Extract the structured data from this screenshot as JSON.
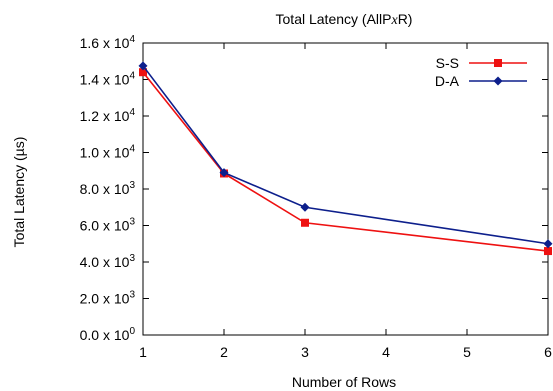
{
  "chart_data": {
    "type": "line",
    "title_prefix": "Total Latency (AllP",
    "title_italic": "x",
    "title_suffix": "R)",
    "xlabel": "Number of Rows",
    "ylabel": "Total Latency (µs)",
    "xlim": [
      1,
      6
    ],
    "ylim": [
      0,
      16000
    ],
    "x_ticks": [
      1,
      2,
      3,
      4,
      5,
      6
    ],
    "x_tick_labels": [
      "1",
      "2",
      "3",
      "4",
      "5",
      "6"
    ],
    "y_ticks": [
      {
        "value": 0,
        "mantissa": "0.0 x 10",
        "exp": "0"
      },
      {
        "value": 2000,
        "mantissa": "2.0 x 10",
        "exp": "3"
      },
      {
        "value": 4000,
        "mantissa": "4.0 x 10",
        "exp": "3"
      },
      {
        "value": 6000,
        "mantissa": "6.0 x 10",
        "exp": "3"
      },
      {
        "value": 8000,
        "mantissa": "8.0 x 10",
        "exp": "3"
      },
      {
        "value": 10000,
        "mantissa": "1.0 x 10",
        "exp": "4"
      },
      {
        "value": 12000,
        "mantissa": "1.2 x 10",
        "exp": "4"
      },
      {
        "value": 14000,
        "mantissa": "1.4 x 10",
        "exp": "4"
      },
      {
        "value": 16000,
        "mantissa": "1.6 x 10",
        "exp": "4"
      }
    ],
    "grid": false,
    "legend_position": "top-right",
    "series": [
      {
        "name": "S-S",
        "color": "#ee1111",
        "marker": "square",
        "x": [
          1,
          2,
          3,
          6
        ],
        "y": [
          14400,
          8850,
          6150,
          4600
        ]
      },
      {
        "name": "D-A",
        "color": "#0d1f8c",
        "marker": "diamond",
        "x": [
          1,
          2,
          3,
          6
        ],
        "y": [
          14750,
          8900,
          7000,
          5000
        ]
      }
    ]
  }
}
